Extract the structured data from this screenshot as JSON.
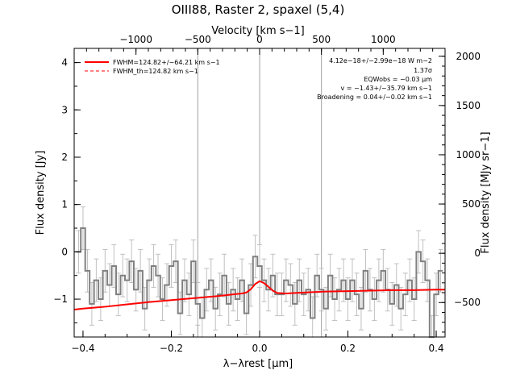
{
  "chart_data": {
    "type": "line",
    "title": "OIII88, Raster 2, spaxel (5,4)",
    "xlabel": "λ−λrest [μm]",
    "ylabel": "Flux density [Jy]",
    "x2label": "Velocity [km s−1]",
    "y2label": "Flux density [MJy sr−1]",
    "xlim": [
      -0.42,
      0.42
    ],
    "ylim": [
      -1.8,
      4.3
    ],
    "x2lim": [
      -1500,
      1500
    ],
    "y2lim": [
      -850,
      2080
    ],
    "xticks": [
      -0.4,
      -0.2,
      0.0,
      0.2,
      0.4
    ],
    "xtick_labels": [
      "−0.4",
      "−0.2",
      "0.0",
      "0.2",
      "0.4"
    ],
    "yticks": [
      -1,
      0,
      1,
      2,
      3,
      4
    ],
    "ytick_labels": [
      "−1",
      "0",
      "1",
      "2",
      "3",
      "4"
    ],
    "x2ticks": [
      -1000,
      -500,
      0,
      500,
      1000
    ],
    "x2tick_labels": [
      "−1000",
      "−500",
      "0",
      "500",
      "1000"
    ],
    "y2ticks": [
      -500,
      0,
      500,
      1000,
      1500,
      2000
    ],
    "y2tick_labels": [
      "−500",
      "0",
      "500",
      "1000",
      "1500",
      "2000"
    ],
    "vlines": [
      -0.14,
      0.0,
      0.14
    ],
    "legend": {
      "placement": "top-left",
      "entries": [
        {
          "label": "FWHM=124.82+/−64.21 km s−1",
          "style": "solid"
        },
        {
          "label": "FWHM_th=124.82 km s−1",
          "style": "dashed"
        }
      ]
    },
    "annotations": [
      "4.12e−18+/−2.99e−18 W m−2",
      "1.37σ",
      "EQWobs = −0.03 μm",
      "v = −1.43+/−35.79 km s−1",
      "Broadening = 0.04+/−0.02 km s−1"
    ],
    "series": [
      {
        "color": "#808080",
        "x": [
          -0.41,
          -0.4,
          -0.39,
          -0.38,
          -0.37,
          -0.36,
          -0.35,
          -0.34,
          -0.33,
          -0.32,
          -0.31,
          -0.3,
          -0.29,
          -0.28,
          -0.27,
          -0.26,
          -0.25,
          -0.24,
          -0.23,
          -0.22,
          -0.21,
          -0.2,
          -0.19,
          -0.18,
          -0.17,
          -0.16,
          -0.15,
          -0.14,
          -0.13,
          -0.12,
          -0.11,
          -0.1,
          -0.09,
          -0.08,
          -0.07,
          -0.06,
          -0.05,
          -0.04,
          -0.03,
          -0.02,
          -0.01,
          0.0,
          0.01,
          0.02,
          0.03,
          0.04,
          0.05,
          0.06,
          0.07,
          0.08,
          0.09,
          0.1,
          0.11,
          0.12,
          0.13,
          0.14,
          0.15,
          0.16,
          0.17,
          0.18,
          0.19,
          0.2,
          0.21,
          0.22,
          0.23,
          0.24,
          0.25,
          0.26,
          0.27,
          0.28,
          0.29,
          0.3,
          0.31,
          0.32,
          0.33,
          0.34,
          0.35,
          0.36,
          0.37,
          0.38,
          0.39,
          0.4,
          0.41
        ],
        "y": [
          0.0,
          0.5,
          -0.4,
          -1.1,
          -0.6,
          -1.0,
          -0.4,
          -0.7,
          -0.3,
          -0.9,
          -0.5,
          -0.6,
          -0.2,
          -0.8,
          -0.4,
          -1.2,
          -0.6,
          -0.3,
          -0.5,
          -1.0,
          -0.7,
          -0.3,
          -0.2,
          -1.3,
          -0.6,
          -0.9,
          -0.2,
          -1.1,
          -1.4,
          -0.8,
          -0.6,
          -1.2,
          -0.9,
          -0.5,
          -1.1,
          -0.8,
          -1.0,
          -0.6,
          -1.3,
          -0.7,
          -0.1,
          -0.3,
          -0.6,
          -0.8,
          -0.5,
          -0.9,
          -0.9,
          -0.6,
          -0.7,
          -1.1,
          -0.6,
          -0.9,
          -0.8,
          -1.4,
          -0.5,
          -0.8,
          -1.2,
          -0.5,
          -1.0,
          -0.8,
          -0.6,
          -1.0,
          -0.6,
          -0.9,
          -1.2,
          -0.4,
          -0.8,
          -1.0,
          -0.6,
          -0.4,
          -0.8,
          -1.1,
          -0.7,
          -1.2,
          -0.9,
          -0.6,
          -1.0,
          0.0,
          -0.2,
          -0.6,
          -1.8,
          -0.9,
          -0.4
        ],
        "yerr": 0.45
      },
      {
        "name": "FWHM=124.82+/−64.21 km s−1",
        "color": "#ff0000",
        "x": [
          -0.42,
          -0.4,
          -0.35,
          -0.3,
          -0.25,
          -0.2,
          -0.15,
          -0.1,
          -0.08,
          -0.06,
          -0.04,
          -0.03,
          -0.02,
          -0.01,
          0.0,
          0.01,
          0.02,
          0.03,
          0.04,
          0.06,
          0.08,
          0.1,
          0.15,
          0.2,
          0.25,
          0.3,
          0.35,
          0.4,
          0.42
        ],
        "y": [
          -1.22,
          -1.2,
          -1.16,
          -1.11,
          -1.06,
          -1.02,
          -0.98,
          -0.94,
          -0.92,
          -0.9,
          -0.88,
          -0.86,
          -0.79,
          -0.68,
          -0.62,
          -0.66,
          -0.74,
          -0.82,
          -0.87,
          -0.88,
          -0.87,
          -0.86,
          -0.84,
          -0.83,
          -0.82,
          -0.81,
          -0.81,
          -0.8,
          -0.8
        ]
      }
    ]
  }
}
